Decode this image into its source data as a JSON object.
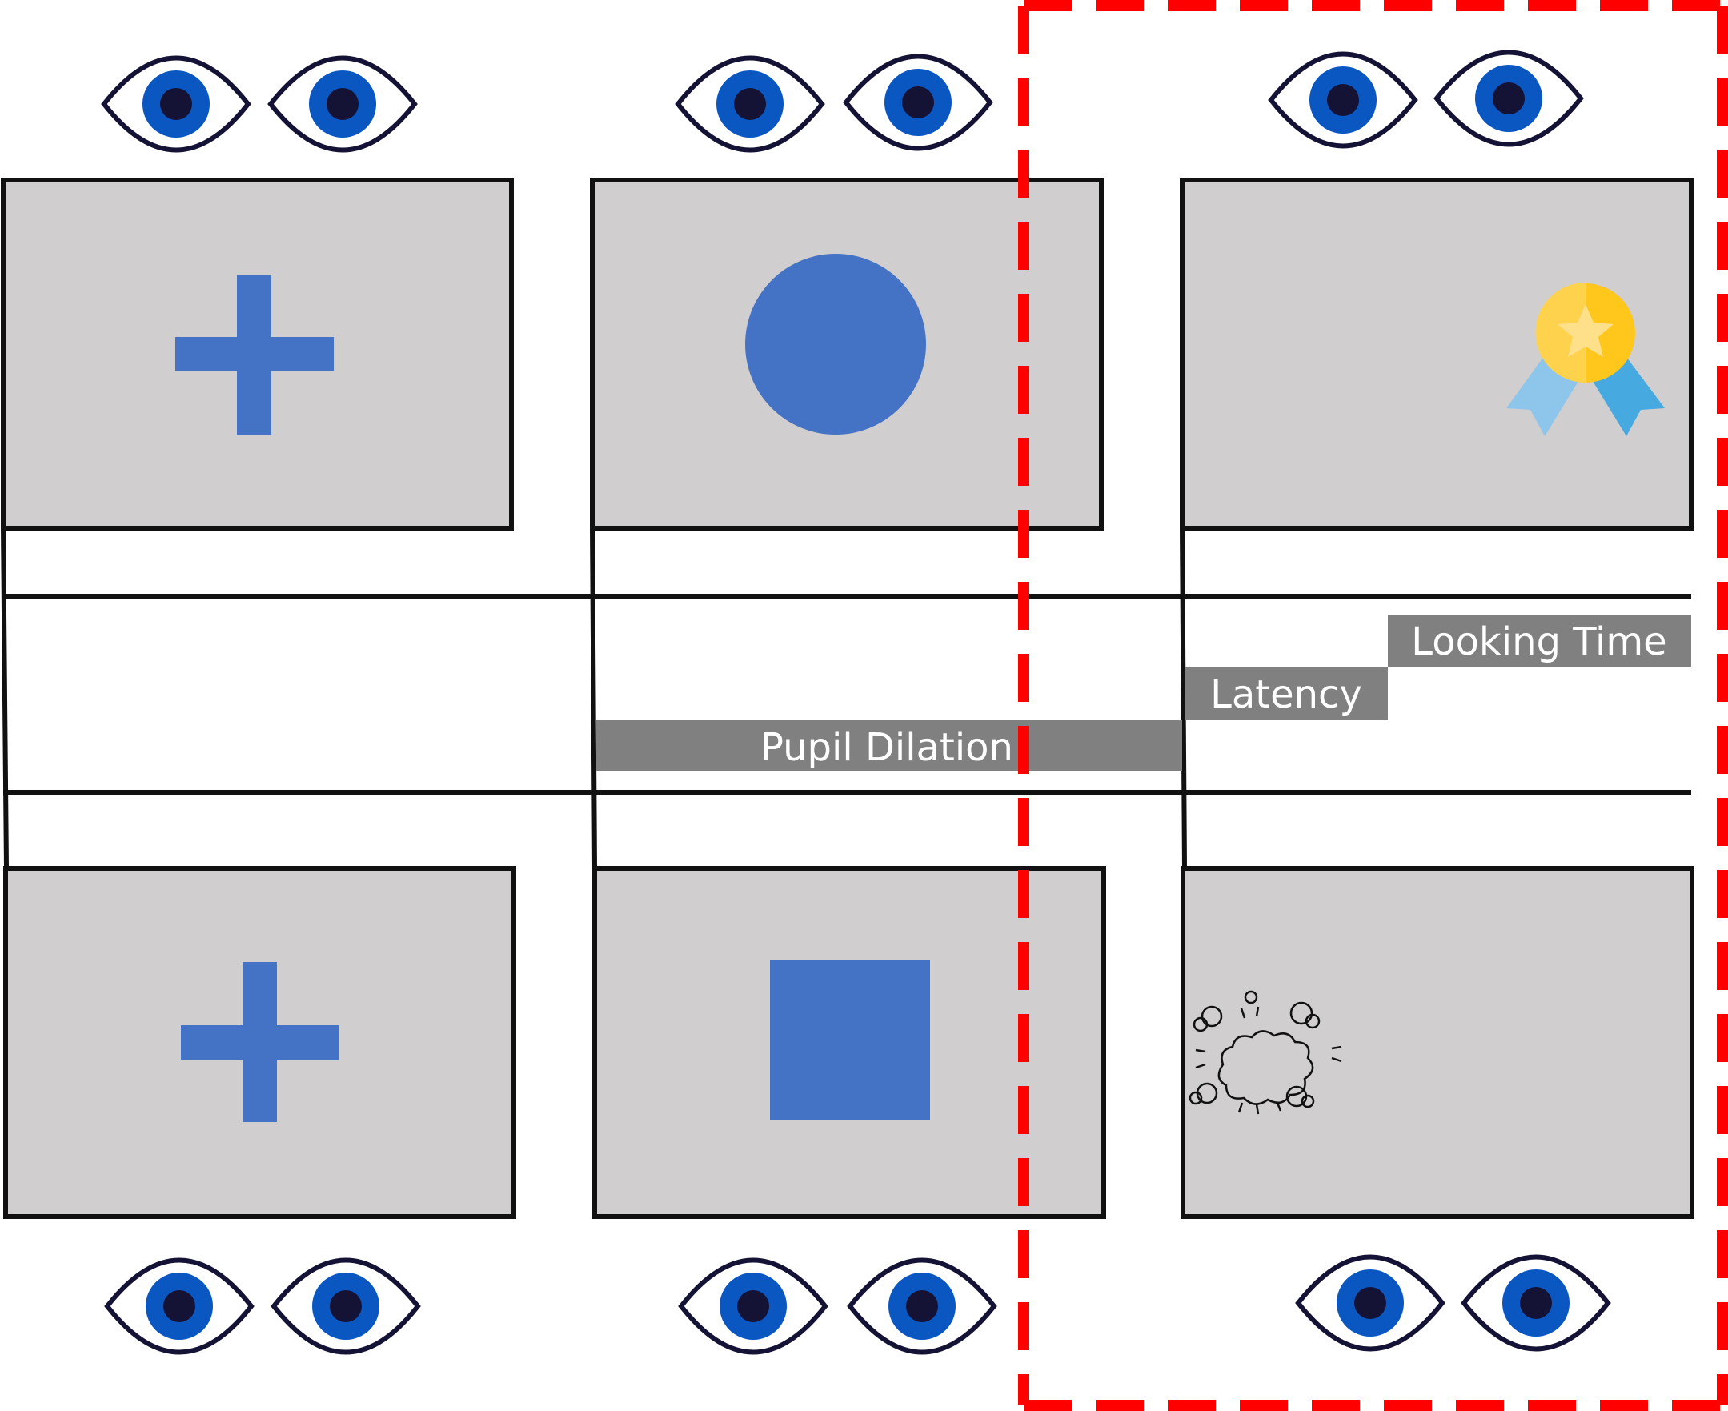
{
  "diagram": {
    "labels": {
      "pupil_dilation": "Pupil Dilation",
      "latency": "Latency",
      "looking_time": "Looking Time"
    },
    "colors": {
      "screen_fill": "#d0cece",
      "stimulus_blue": "#4472c4",
      "label_bar": "#808080",
      "highlight_dash": "#ff0000",
      "iris_blue": "#0a57c2",
      "pupil_dark": "#141235",
      "outline": "#111111",
      "medal_gold": "#ffc61b",
      "ribbon_light": "#8ec5ea",
      "ribbon_dark": "#46a9e0"
    },
    "icons": {
      "fixation": "plus-icon",
      "cue_top": "circle-icon",
      "cue_bottom": "square-icon",
      "reward": "medal-icon",
      "no_reward": "puff-cloud-icon",
      "observer": "eye-icon"
    }
  }
}
